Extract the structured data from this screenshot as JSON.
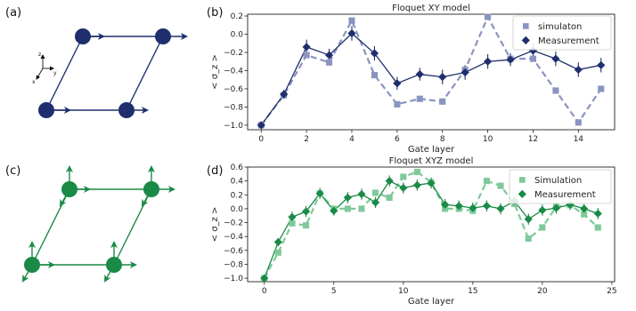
{
  "panels": {
    "a": "(a)",
    "b": "(b)",
    "c": "(c)",
    "d": "(d)"
  },
  "coord_axes": {
    "z": "z",
    "y": "y",
    "x": "x"
  },
  "colors": {
    "xy_dark": "#1f2f6e",
    "xy_light": "#8a94c0",
    "xyz_dark": "#1a8a46",
    "xyz_light": "#7fc99a"
  },
  "chart_data": [
    {
      "type": "line",
      "title": "Floquet XY model",
      "xlabel": "Gate layer",
      "ylabel": "< σ_z >",
      "ylabel_html": "<σ̄z>",
      "xlim": [
        -0.6,
        15.6
      ],
      "ylim": [
        -1.05,
        0.22
      ],
      "xticks": [
        0,
        2,
        4,
        6,
        8,
        10,
        12,
        14
      ],
      "yticks": [
        -1.0,
        -0.8,
        -0.6,
        -0.4,
        -0.2,
        0.0,
        0.2
      ],
      "ytick_labels": [
        "−1.0",
        "−0.8",
        "−0.6",
        "−0.4",
        "−0.2",
        "0.0",
        "0.2"
      ],
      "legend_position": "top-right",
      "x": [
        0,
        1,
        2,
        3,
        4,
        5,
        6,
        7,
        8,
        9,
        10,
        11,
        12,
        13,
        14,
        15
      ],
      "series": [
        {
          "name": "simulaton",
          "marker": "square",
          "style": "dashed",
          "values": [
            -1.0,
            -0.67,
            -0.23,
            -0.31,
            0.15,
            -0.45,
            -0.77,
            -0.71,
            -0.74,
            -0.39,
            0.19,
            -0.27,
            -0.27,
            -0.62,
            -0.97,
            -0.6
          ]
        },
        {
          "name": "Measurement",
          "marker": "diamond",
          "style": "solid",
          "values": [
            -1.0,
            -0.66,
            -0.14,
            -0.23,
            0.01,
            -0.21,
            -0.54,
            -0.44,
            -0.47,
            -0.42,
            -0.3,
            -0.28,
            -0.18,
            -0.27,
            -0.39,
            -0.34
          ],
          "errors": [
            0.02,
            0.05,
            0.08,
            0.07,
            0.08,
            0.08,
            0.07,
            0.07,
            0.08,
            0.08,
            0.08,
            0.07,
            0.08,
            0.08,
            0.08,
            0.08
          ]
        }
      ]
    },
    {
      "type": "line",
      "title": "Floquet XYZ model",
      "xlabel": "Gate layer",
      "ylabel": "< σ_z >",
      "ylabel_html": "<σ̄z>",
      "xlim": [
        -1.2,
        25.2
      ],
      "ylim": [
        -1.05,
        0.6
      ],
      "xticks": [
        0,
        5,
        10,
        15,
        20,
        25
      ],
      "yticks": [
        -1.0,
        -0.8,
        -0.6,
        -0.4,
        -0.2,
        0.0,
        0.2,
        0.4,
        0.6
      ],
      "ytick_labels": [
        "−1.0",
        "−0.8",
        "−0.6",
        "−0.4",
        "−0.2",
        "0.0",
        "0.2",
        "0.4",
        "0.6"
      ],
      "legend_position": "top-right",
      "x": [
        0,
        1,
        2,
        3,
        4,
        5,
        6,
        7,
        8,
        9,
        10,
        11,
        12,
        13,
        14,
        15,
        16,
        17,
        18,
        19,
        20,
        21,
        22,
        23,
        24
      ],
      "series": [
        {
          "name": "Simulation",
          "marker": "square",
          "style": "dashed",
          "values": [
            -1.0,
            -0.63,
            -0.21,
            -0.24,
            0.22,
            0.0,
            0.0,
            0.0,
            0.23,
            0.16,
            0.46,
            0.53,
            0.38,
            0.0,
            0.0,
            -0.03,
            0.4,
            0.33,
            0.07,
            -0.43,
            -0.27,
            0.03,
            0.05,
            -0.08,
            -0.27
          ],
          "errors": []
        },
        {
          "name": "Measurement",
          "marker": "diamond",
          "style": "solid",
          "values": [
            -1.0,
            -0.48,
            -0.12,
            -0.04,
            0.22,
            -0.03,
            0.16,
            0.21,
            0.09,
            0.4,
            0.3,
            0.34,
            0.37,
            0.06,
            0.04,
            0.01,
            0.04,
            0.0,
            0.11,
            -0.15,
            -0.02,
            0.01,
            0.06,
            0.0,
            -0.07
          ],
          "errors": [
            0.02,
            0.06,
            0.08,
            0.08,
            0.08,
            0.07,
            0.08,
            0.08,
            0.08,
            0.08,
            0.08,
            0.08,
            0.08,
            0.08,
            0.08,
            0.08,
            0.08,
            0.08,
            0.08,
            0.08,
            0.08,
            0.08,
            0.08,
            0.08,
            0.08
          ]
        }
      ]
    }
  ]
}
